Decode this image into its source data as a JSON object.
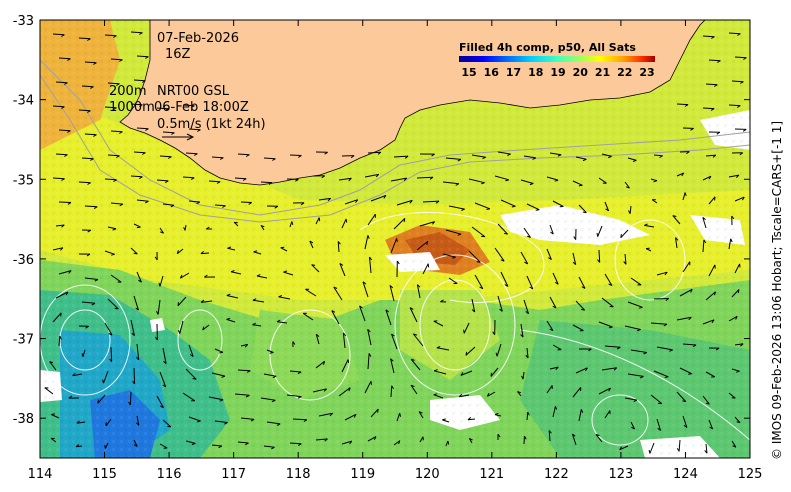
{
  "map": {
    "date_line": "07-Feb-2026",
    "time_line": "16Z",
    "contour_info_1": "200m",
    "contour_info_2": "1000m",
    "source_line": "NRT00 GSL",
    "source_time": "06-Feb 18:00Z",
    "vector_scale": "0.5m/s (1kt 24h)",
    "credit": "© IMOS 09-Feb-2026 13:06 Hobart; Tscale=CARS+[-1 1]",
    "x_ticks": [
      "114",
      "115",
      "116",
      "117",
      "118",
      "119",
      "120",
      "121",
      "122",
      "123",
      "124",
      "125"
    ],
    "y_ticks": [
      "-33",
      "-34",
      "-35",
      "-36",
      "-37",
      "-38"
    ],
    "lon_range": [
      114,
      125
    ],
    "lat_range": [
      -38.5,
      -33
    ],
    "land_color": "#fbc99a",
    "colorbar": {
      "title": "Filled 4h comp, p50, All Sats",
      "ticks": [
        "15",
        "16",
        "17",
        "18",
        "19",
        "20",
        "21",
        "22",
        "23"
      ],
      "colors": [
        "#00008f",
        "#0000ff",
        "#0070ff",
        "#00d0ff",
        "#40ffbf",
        "#9fff60",
        "#ffff00",
        "#ff9f00",
        "#ff3000",
        "#a00000"
      ]
    }
  }
}
